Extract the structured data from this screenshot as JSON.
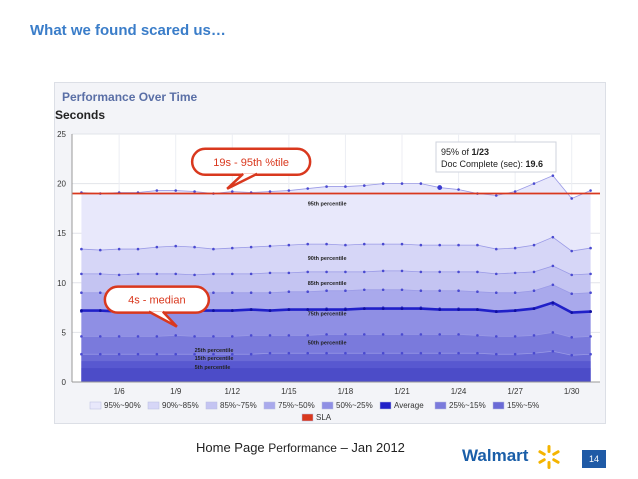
{
  "slide": {
    "title": "What we found scared us…",
    "footer_main": "Home Page ",
    "footer_small": "Performance",
    "footer_rest": " – Jan 2012",
    "brand": "Walmart",
    "page_number": "14",
    "brand_color": "#1a5ea8",
    "spark_color": "#f4b400"
  },
  "chart_data": {
    "type": "area",
    "title": "Performance Over Time",
    "ylabel": "Seconds",
    "ylim": [
      0,
      25
    ],
    "yticks": [
      0,
      5,
      10,
      15,
      20,
      25
    ],
    "x": [
      "1/4",
      "1/5",
      "1/6",
      "1/7",
      "1/8",
      "1/9",
      "1/10",
      "1/11",
      "1/12",
      "1/13",
      "1/14",
      "1/15",
      "1/16",
      "1/17",
      "1/18",
      "1/19",
      "1/20",
      "1/21",
      "1/22",
      "1/23",
      "1/24",
      "1/25",
      "1/26",
      "1/27",
      "1/28",
      "1/29",
      "1/30",
      "1/31"
    ],
    "xticks": [
      "1/6",
      "1/9",
      "1/12",
      "1/15",
      "1/18",
      "1/21",
      "1/24",
      "1/27",
      "1/30"
    ],
    "grid": true,
    "series": [
      {
        "name": "95%~90%",
        "color": "#e8e8fb",
        "values": [
          19.1,
          19.0,
          19.1,
          19.1,
          19.3,
          19.3,
          19.2,
          19.0,
          19.2,
          19.1,
          19.2,
          19.3,
          19.5,
          19.7,
          19.7,
          19.8,
          20.0,
          20.0,
          20.0,
          19.6,
          19.4,
          19.0,
          18.8,
          19.2,
          20.0,
          20.8,
          18.5,
          19.3
        ]
      },
      {
        "name": "90%~85%",
        "color": "#d6d6f7",
        "values": [
          13.4,
          13.3,
          13.4,
          13.4,
          13.6,
          13.7,
          13.6,
          13.4,
          13.5,
          13.6,
          13.7,
          13.8,
          13.9,
          13.9,
          13.8,
          13.9,
          13.9,
          13.9,
          13.8,
          13.8,
          13.8,
          13.8,
          13.4,
          13.5,
          13.8,
          14.6,
          13.2,
          13.5
        ]
      },
      {
        "name": "85%~75%",
        "color": "#c4c4f2",
        "values": [
          10.9,
          10.9,
          10.8,
          10.9,
          10.9,
          10.9,
          10.8,
          10.9,
          10.9,
          10.9,
          11.0,
          11.0,
          11.1,
          11.1,
          11.1,
          11.1,
          11.2,
          11.2,
          11.1,
          11.1,
          11.1,
          11.1,
          10.9,
          11.0,
          11.1,
          11.7,
          10.8,
          10.9
        ]
      },
      {
        "name": "75%~50%",
        "color": "#a9a9ec",
        "values": [
          9.0,
          9.0,
          8.9,
          9.0,
          9.0,
          9.0,
          9.0,
          9.0,
          9.0,
          9.0,
          9.0,
          9.1,
          9.1,
          9.2,
          9.2,
          9.3,
          9.3,
          9.3,
          9.2,
          9.2,
          9.2,
          9.1,
          9.0,
          9.0,
          9.2,
          9.8,
          8.9,
          9.0
        ]
      },
      {
        "name": "50%~25%",
        "color": "#8f8fe4",
        "values": [
          7.1,
          7.2,
          7.1,
          7.2,
          7.2,
          7.2,
          7.2,
          7.2,
          7.2,
          7.3,
          7.2,
          7.3,
          7.3,
          7.4,
          7.4,
          7.4,
          7.5,
          7.5,
          7.5,
          7.4,
          7.4,
          7.3,
          7.1,
          7.2,
          7.4,
          7.8,
          7.0,
          7.1
        ]
      },
      {
        "name": "25%~15%",
        "color": "#7a7adc",
        "values": [
          4.6,
          4.6,
          4.6,
          4.6,
          4.6,
          4.7,
          4.6,
          4.6,
          4.6,
          4.7,
          4.7,
          4.7,
          4.7,
          4.8,
          4.8,
          4.8,
          4.8,
          4.8,
          4.8,
          4.8,
          4.8,
          4.7,
          4.6,
          4.6,
          4.7,
          5.0,
          4.5,
          4.6
        ]
      },
      {
        "name": "15%~5%",
        "color": "#6a6ad6",
        "values": [
          2.8,
          2.8,
          2.8,
          2.8,
          2.8,
          2.8,
          2.8,
          2.8,
          2.8,
          2.8,
          2.9,
          2.9,
          2.9,
          2.9,
          2.9,
          2.9,
          2.9,
          2.9,
          2.9,
          2.9,
          2.9,
          2.9,
          2.8,
          2.8,
          2.9,
          3.1,
          2.7,
          2.8
        ]
      }
    ],
    "lower_bands": [
      2.1,
      1.4
    ],
    "average": {
      "name": "Average",
      "color": "#2020c8",
      "values": [
        7.2,
        7.2,
        7.1,
        7.2,
        7.2,
        7.2,
        7.2,
        7.2,
        7.2,
        7.3,
        7.2,
        7.3,
        7.3,
        7.3,
        7.3,
        7.4,
        7.4,
        7.4,
        7.4,
        7.3,
        7.3,
        7.3,
        7.1,
        7.2,
        7.4,
        8.0,
        7.0,
        7.1
      ]
    },
    "sla": {
      "name": "SLA",
      "color": "#d9381e",
      "value": 19.0
    },
    "band_labels": [
      {
        "text": "95th percentile",
        "x": "1/16",
        "y": 17.8
      },
      {
        "text": "90th percentile",
        "x": "1/16",
        "y": 12.3
      },
      {
        "text": "85th percentile",
        "x": "1/16",
        "y": 9.8
      },
      {
        "text": "75th percentile",
        "x": "1/16",
        "y": 6.7
      },
      {
        "text": "50th percentile",
        "x": "1/16",
        "y": 3.8
      },
      {
        "text": "25th percentile",
        "x": "1/10",
        "y": 3.0
      },
      {
        "text": "15th percentile",
        "x": "1/10",
        "y": 2.2
      },
      {
        "text": "5th percentile",
        "x": "1/10",
        "y": 1.3
      }
    ],
    "callouts": [
      {
        "text": "19s - 95th %tile",
        "x": "1/13",
        "y": 22.2
      },
      {
        "text": "4s - median",
        "x": "1/8",
        "y": 8.3
      }
    ],
    "tooltip": {
      "line1": "95% of ",
      "line1_bold": "1/23",
      "line2": "Doc Complete (sec): ",
      "line2_bold": "19.6"
    },
    "legend": {
      "placement": "bottom",
      "items": [
        {
          "label": "95%~90%",
          "color": "#e8e8fb"
        },
        {
          "label": "90%~85%",
          "color": "#d6d6f7"
        },
        {
          "label": "85%~75%",
          "color": "#c4c4f2"
        },
        {
          "label": "75%~50%",
          "color": "#a9a9ec"
        },
        {
          "label": "50%~25%",
          "color": "#8f8fe4"
        },
        {
          "label": "Average",
          "color": "#2020c8"
        },
        {
          "label": "25%~15%",
          "color": "#7a7adc"
        },
        {
          "label": "15%~5%",
          "color": "#6a6ad6"
        },
        {
          "label": "SLA",
          "color": "#d9381e"
        }
      ]
    }
  }
}
